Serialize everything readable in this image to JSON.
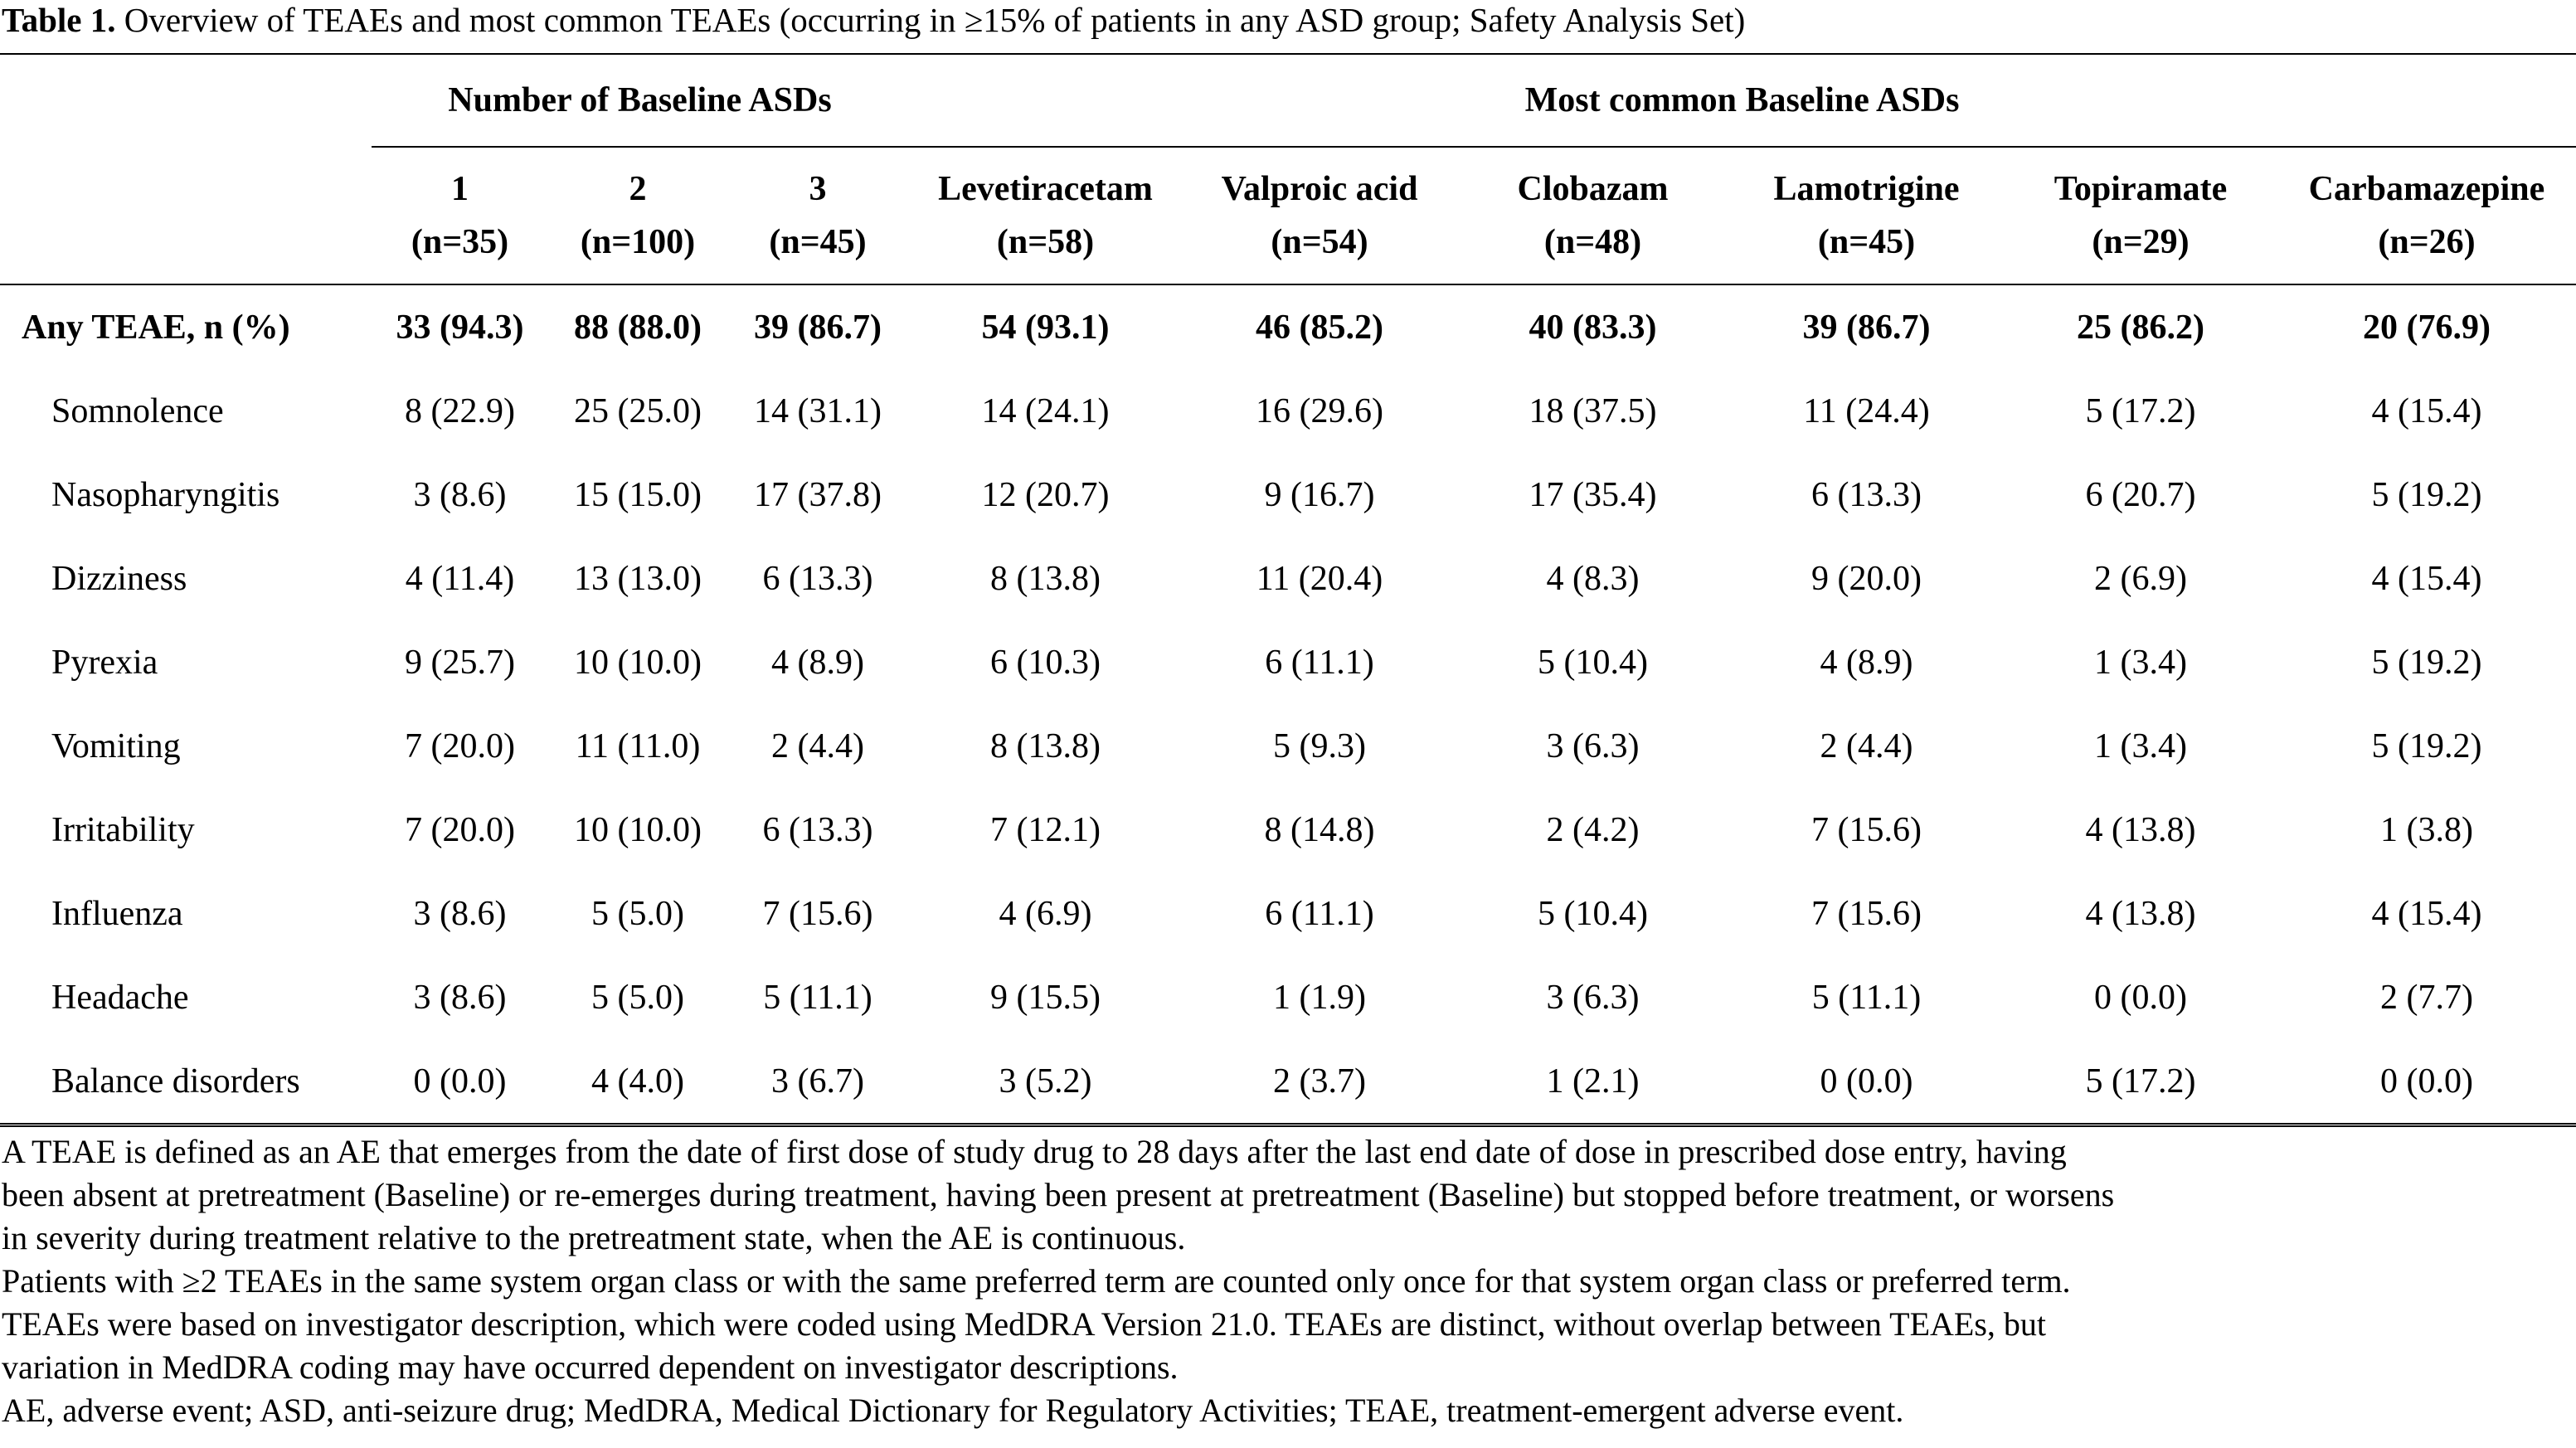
{
  "caption": {
    "label": "Table 1.",
    "text": " Overview of TEAEs and most common TEAEs (occurring in ≥15% of patients in any ASD group; Safety Analysis Set)"
  },
  "groups": {
    "number": "Number of Baseline ASDs",
    "common": "Most common Baseline ASDs"
  },
  "columns": [
    {
      "name": "1",
      "n": "(n=35)"
    },
    {
      "name": "2",
      "n": "(n=100)"
    },
    {
      "name": "3",
      "n": "(n=45)"
    },
    {
      "name": "Levetiracetam",
      "n": "(n=58)"
    },
    {
      "name": "Valproic acid",
      "n": "(n=54)"
    },
    {
      "name": "Clobazam",
      "n": "(n=48)"
    },
    {
      "name": "Lamotrigine",
      "n": "(n=45)"
    },
    {
      "name": "Topiramate",
      "n": "(n=29)"
    },
    {
      "name": "Carbamazepine",
      "n": "(n=26)"
    }
  ],
  "rows": [
    {
      "label": "Any TEAE, n (%)",
      "values": [
        "33 (94.3)",
        "88 (88.0)",
        "39 (86.7)",
        "54 (93.1)",
        "46 (85.2)",
        "40 (83.3)",
        "39 (86.7)",
        "25 (86.2)",
        "20 (76.9)"
      ]
    },
    {
      "label": "Somnolence",
      "values": [
        "8 (22.9)",
        "25 (25.0)",
        "14 (31.1)",
        "14 (24.1)",
        "16 (29.6)",
        "18 (37.5)",
        "11 (24.4)",
        "5 (17.2)",
        "4 (15.4)"
      ]
    },
    {
      "label": "Nasopharyngitis",
      "values": [
        "3 (8.6)",
        "15 (15.0)",
        "17 (37.8)",
        "12 (20.7)",
        "9 (16.7)",
        "17 (35.4)",
        "6 (13.3)",
        "6 (20.7)",
        "5 (19.2)"
      ]
    },
    {
      "label": "Dizziness",
      "values": [
        "4 (11.4)",
        "13 (13.0)",
        "6 (13.3)",
        "8 (13.8)",
        "11 (20.4)",
        "4 (8.3)",
        "9 (20.0)",
        "2 (6.9)",
        "4 (15.4)"
      ]
    },
    {
      "label": "Pyrexia",
      "values": [
        "9 (25.7)",
        "10 (10.0)",
        "4 (8.9)",
        "6 (10.3)",
        "6 (11.1)",
        "5 (10.4)",
        "4 (8.9)",
        "1 (3.4)",
        "5 (19.2)"
      ]
    },
    {
      "label": "Vomiting",
      "values": [
        "7 (20.0)",
        "11 (11.0)",
        "2 (4.4)",
        "8 (13.8)",
        "5 (9.3)",
        "3 (6.3)",
        "2 (4.4)",
        "1 (3.4)",
        "5 (19.2)"
      ]
    },
    {
      "label": "Irritability",
      "values": [
        "7 (20.0)",
        "10 (10.0)",
        "6 (13.3)",
        "7 (12.1)",
        "8 (14.8)",
        "2 (4.2)",
        "7 (15.6)",
        "4 (13.8)",
        "1 (3.8)"
      ]
    },
    {
      "label": "Influenza",
      "values": [
        "3 (8.6)",
        "5 (5.0)",
        "7 (15.6)",
        "4 (6.9)",
        "6 (11.1)",
        "5 (10.4)",
        "7 (15.6)",
        "4 (13.8)",
        "4 (15.4)"
      ]
    },
    {
      "label": "Headache",
      "values": [
        "3 (8.6)",
        "5 (5.0)",
        "5 (11.1)",
        "9 (15.5)",
        "1 (1.9)",
        "3 (6.3)",
        "5 (11.1)",
        "0 (0.0)",
        "2 (7.7)"
      ]
    },
    {
      "label": "Balance disorders",
      "values": [
        "0 (0.0)",
        "4 (4.0)",
        "3 (6.7)",
        "3 (5.2)",
        "2 (3.7)",
        "1 (2.1)",
        "0 (0.0)",
        "5 (17.2)",
        "0 (0.0)"
      ]
    }
  ],
  "footnotes": [
    "A TEAE is defined as an AE that emerges from the date of first dose of study drug to 28 days after the last end date of dose in prescribed dose entry, having\nbeen absent at pretreatment (Baseline) or re-emerges during treatment, having been present at pretreatment (Baseline) but stopped before treatment, or worsens\nin severity during treatment relative to the pretreatment state, when the AE is continuous.",
    "Patients with ≥2 TEAEs in the same system organ class or with the same preferred term are counted only once for that system organ class or preferred term.",
    "TEAEs were based on investigator description, which were coded using MedDRA Version 21.0. TEAEs are distinct, without overlap between TEAEs, but\nvariation in MedDRA coding may have occurred dependent on investigator descriptions.",
    "AE, adverse event; ASD, anti-seizure drug; MedDRA, Medical Dictionary for Regulatory Activities; TEAE, treatment-emergent adverse event."
  ]
}
